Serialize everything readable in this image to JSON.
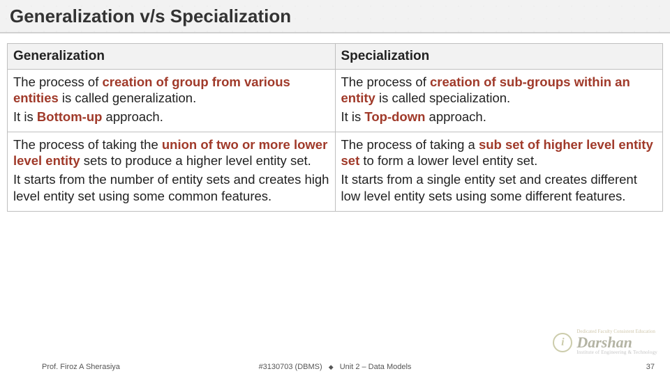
{
  "title": "Generalization v/s Specialization",
  "table": {
    "headers": [
      "Generalization",
      "Specialization"
    ],
    "header_bg": "#f2f2f2",
    "border_color": "#bfbfbf",
    "accent_color": "#a03a2a",
    "text_color": "#222222",
    "fontsize": 18.5,
    "rows": [
      {
        "left": {
          "line1_pre": "The process of ",
          "line1_bold": "creation of group from various entities",
          "line1_post": " is called generalization.",
          "line2_pre": "It is ",
          "line2_bold": "Bottom-up",
          "line2_post": " approach."
        },
        "right": {
          "line1_pre": "The process of ",
          "line1_bold": "creation of sub-groups within an entity",
          "line1_post": " is called specialization.",
          "line2_pre": "It is ",
          "line2_bold": "Top-down",
          "line2_post": " approach."
        }
      },
      {
        "left": {
          "line1_pre": "The process of taking the ",
          "line1_bold": "union of two or more lower level entity",
          "line1_post": " sets to produce a higher level entity set.",
          "line2_plain": "It starts from the number of entity sets and creates high level entity set using some common features."
        },
        "right": {
          "line1_pre": "The process of taking a ",
          "line1_bold": "sub set of higher level entity set",
          "line1_post": " to form a lower level entity set.",
          "line2_plain": "It starts from a single entity set and creates different low level entity sets using some different features."
        }
      }
    ]
  },
  "footer": {
    "author": "Prof. Firoz A Sherasiya",
    "course": "#3130703 (DBMS)",
    "unit": "Unit 2 – Data Models",
    "page": "37"
  },
  "logo": {
    "name": "Darshan",
    "tagline": "Dedicated Faculty Consistent Education",
    "subtitle": "Institute of Engineering & Technology"
  },
  "colors": {
    "title_bg": "#f2f2f2",
    "title_border": "#d0d0d0",
    "page_bg": "#ffffff"
  }
}
